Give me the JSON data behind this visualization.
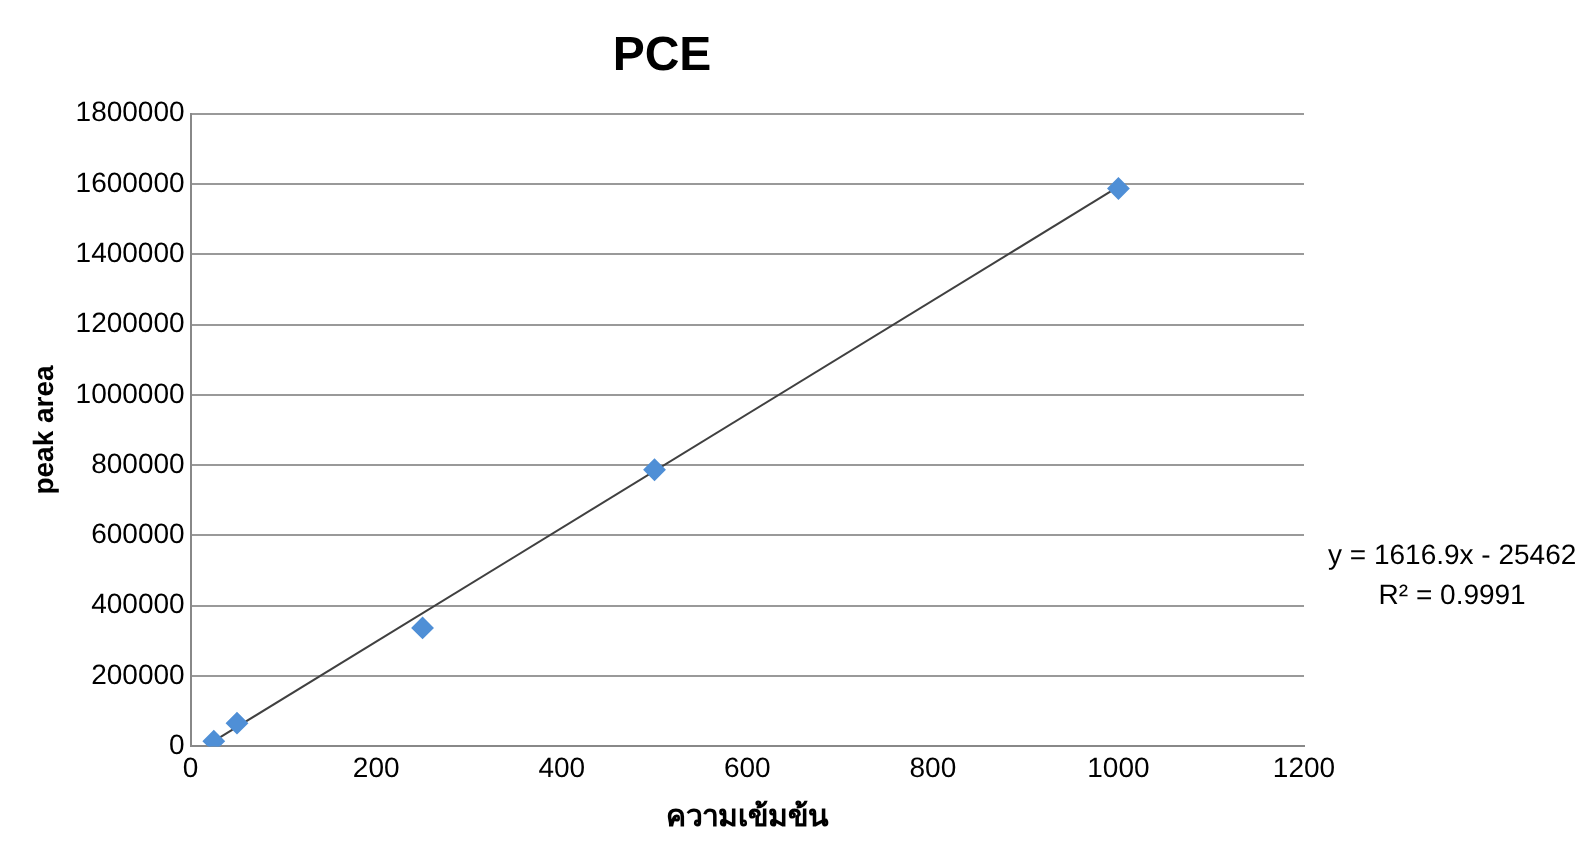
{
  "chart_data": {
    "type": "scatter",
    "title": "PCE",
    "xlabel": "ความเข้มข้น",
    "ylabel": "peak area",
    "series": [
      {
        "color": "#4f8fd6",
        "marker": "diamond",
        "x": [
          25,
          50,
          250,
          500,
          1000
        ],
        "values": [
          15000,
          66000,
          337000,
          787000,
          1587000
        ]
      },
      {
        "type": "line",
        "color": "#404040",
        "marker": "none",
        "line_style": "solid",
        "x": [
          25,
          1000
        ],
        "values": [
          15000,
          1592000
        ]
      }
    ],
    "annotations": [
      "y = 1616.9x - 25462",
      "R² = 0.9991"
    ],
    "xlim": [
      0,
      1200
    ],
    "xticks": [
      0,
      200,
      400,
      600,
      800,
      1000,
      1200
    ],
    "ylim": [
      0,
      1800000
    ],
    "yticks": [
      0,
      200000,
      400000,
      600000,
      800000,
      1000000,
      1200000,
      1400000,
      1600000,
      1800000
    ],
    "grid": "y",
    "legend": false
  }
}
